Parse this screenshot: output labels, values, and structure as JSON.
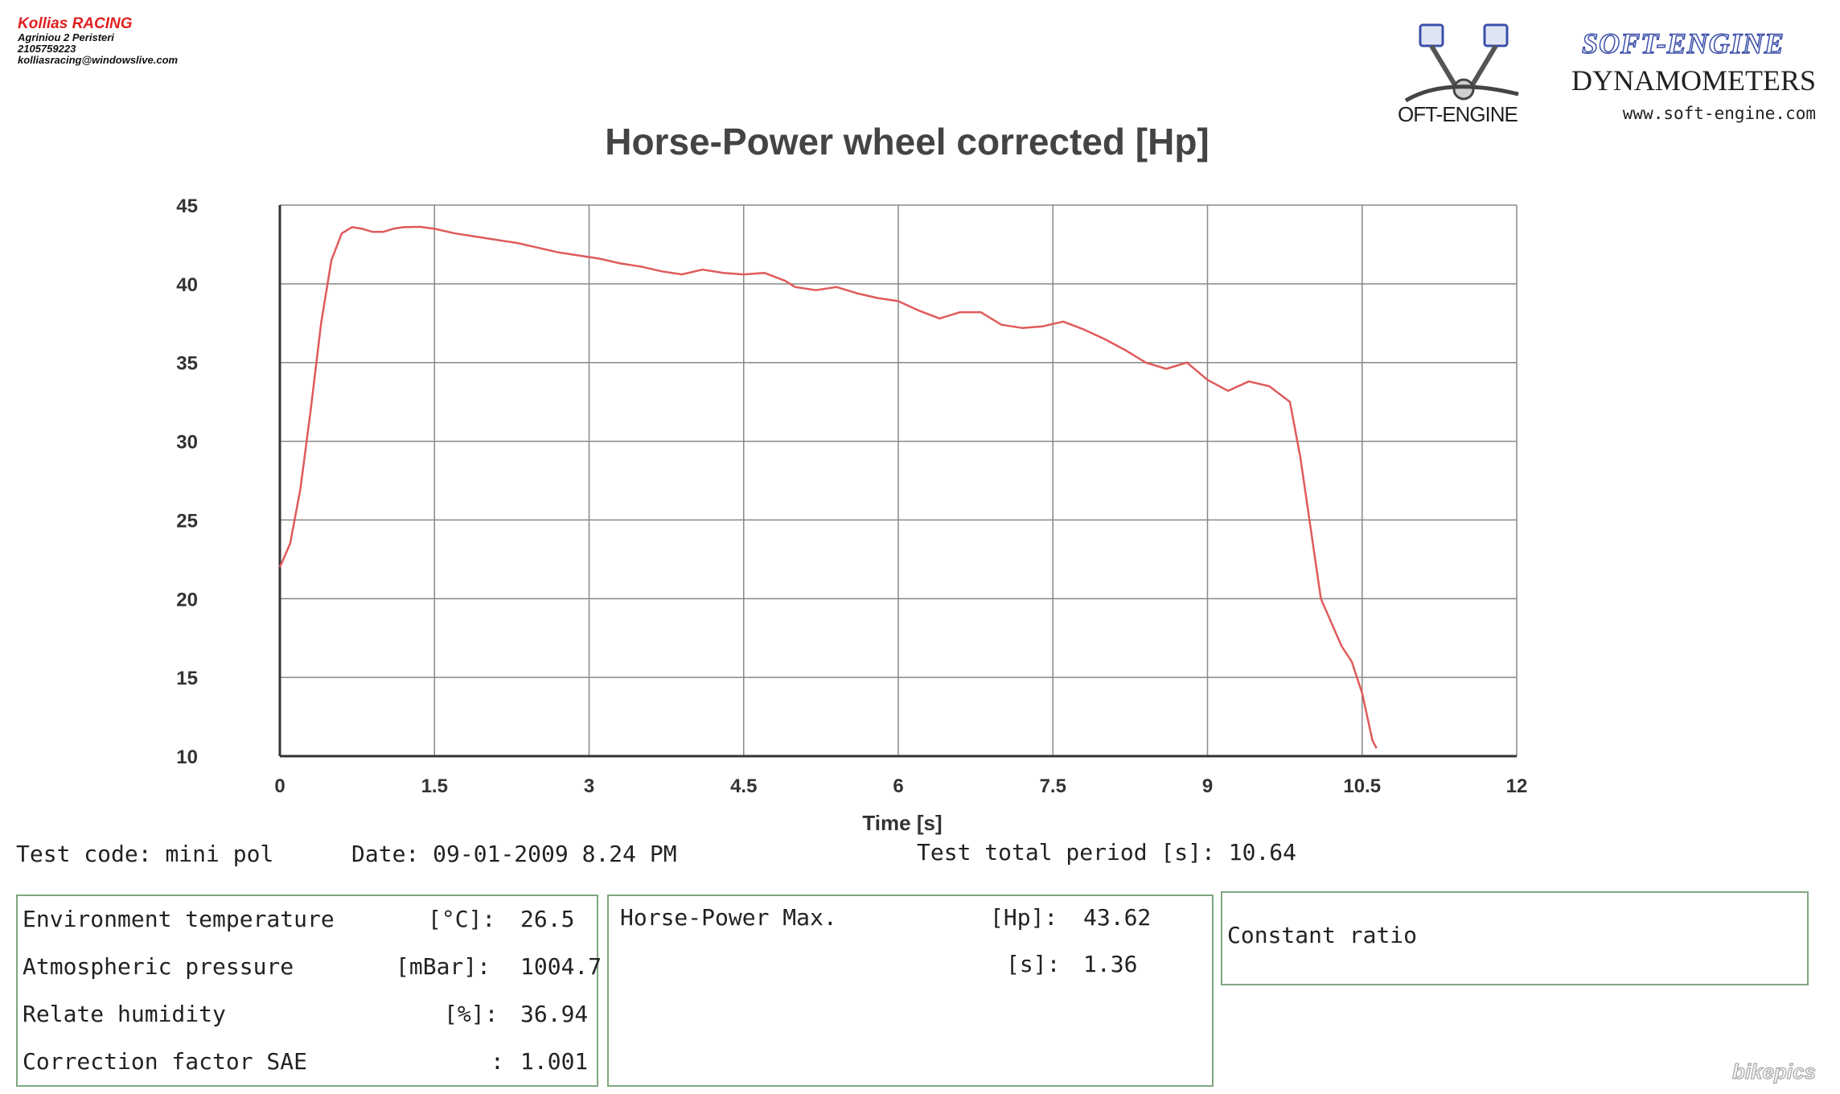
{
  "header": {
    "shop_name": "Kollias RACING",
    "address": "Agriniou 2 Peristeri",
    "phone": "2105759223",
    "email": "kolliasracing@windowslive.com"
  },
  "brand": {
    "title": "SOFT-ENGINE",
    "subtitle": "DYNAMOMETERS",
    "url": "www.soft-engine.com",
    "logo_text": "OFT-ENGINE"
  },
  "test_info": {
    "code_label": "Test code:",
    "code_value": "mini pol",
    "date_label": "Date:",
    "date_value": "09-01-2009 8.24 PM",
    "period_label": "Test total period [s]:",
    "period_value": "10.64"
  },
  "environment": {
    "rows": [
      {
        "label": "Environment temperature",
        "unit": "[°C]:",
        "value": "26.5"
      },
      {
        "label": "Atmospheric pressure",
        "unit": "[mBar]:",
        "value": "1004.7"
      },
      {
        "label": "Relate humidity",
        "unit": "[%]:",
        "value": "36.94"
      },
      {
        "label": "Correction factor SAE",
        "unit": ":",
        "value": "1.001"
      }
    ]
  },
  "hp_max": {
    "label": "Horse-Power Max.",
    "unit1": "[Hp]:",
    "value1": "43.62",
    "unit2": "[s]:",
    "value2": "1.36"
  },
  "constant_ratio": {
    "label": "Constant ratio"
  },
  "watermark": "bikepics",
  "colors": {
    "line": "#e05a5a",
    "grid": "#888888",
    "axis": "#333333",
    "panel_border": "#7fa77f"
  },
  "chart_data": {
    "type": "line",
    "title": "Horse-Power wheel corrected [Hp]",
    "xlabel": "Time [s]",
    "ylabel": "",
    "xlim": [
      0,
      12
    ],
    "ylim": [
      10,
      45
    ],
    "x_ticks": [
      "0",
      "1.5",
      "3",
      "4.5",
      "6",
      "7.5",
      "9",
      "10.5",
      "12"
    ],
    "y_ticks": [
      "45",
      "40",
      "35",
      "30",
      "25",
      "20",
      "15",
      "10"
    ],
    "grid": true,
    "series": [
      {
        "x": [
          0,
          0.1,
          0.2,
          0.3,
          0.4,
          0.5,
          0.6,
          0.7,
          0.8,
          0.9,
          1.0,
          1.1,
          1.2,
          1.36,
          1.5,
          1.7,
          1.9,
          2.1,
          2.3,
          2.5,
          2.7,
          2.9,
          3.1,
          3.3,
          3.5,
          3.7,
          3.9,
          4.1,
          4.3,
          4.5,
          4.7,
          4.9,
          5.0,
          5.2,
          5.4,
          5.6,
          5.8,
          6.0,
          6.2,
          6.4,
          6.6,
          6.8,
          7.0,
          7.2,
          7.4,
          7.6,
          7.8,
          8.0,
          8.2,
          8.4,
          8.6,
          8.8,
          9.0,
          9.2,
          9.4,
          9.6,
          9.8,
          9.9,
          10.0,
          10.1,
          10.2,
          10.3,
          10.4,
          10.5,
          10.55,
          10.6,
          10.64
        ],
        "y": [
          22.0,
          23.5,
          27.0,
          32.0,
          37.5,
          41.5,
          43.2,
          43.6,
          43.5,
          43.3,
          43.3,
          43.5,
          43.6,
          43.62,
          43.5,
          43.2,
          43.0,
          42.8,
          42.6,
          42.3,
          42.0,
          41.8,
          41.6,
          41.3,
          41.1,
          40.8,
          40.6,
          40.9,
          40.7,
          40.6,
          40.7,
          40.2,
          39.8,
          39.6,
          39.8,
          39.4,
          39.1,
          38.9,
          38.3,
          37.8,
          38.2,
          38.2,
          37.4,
          37.2,
          37.3,
          37.6,
          37.1,
          36.5,
          35.8,
          35.0,
          34.6,
          35.0,
          33.9,
          33.2,
          33.8,
          33.5,
          32.5,
          29.0,
          24.5,
          20.0,
          18.5,
          17.0,
          16.0,
          14.0,
          12.5,
          11.0,
          10.5
        ]
      }
    ]
  }
}
